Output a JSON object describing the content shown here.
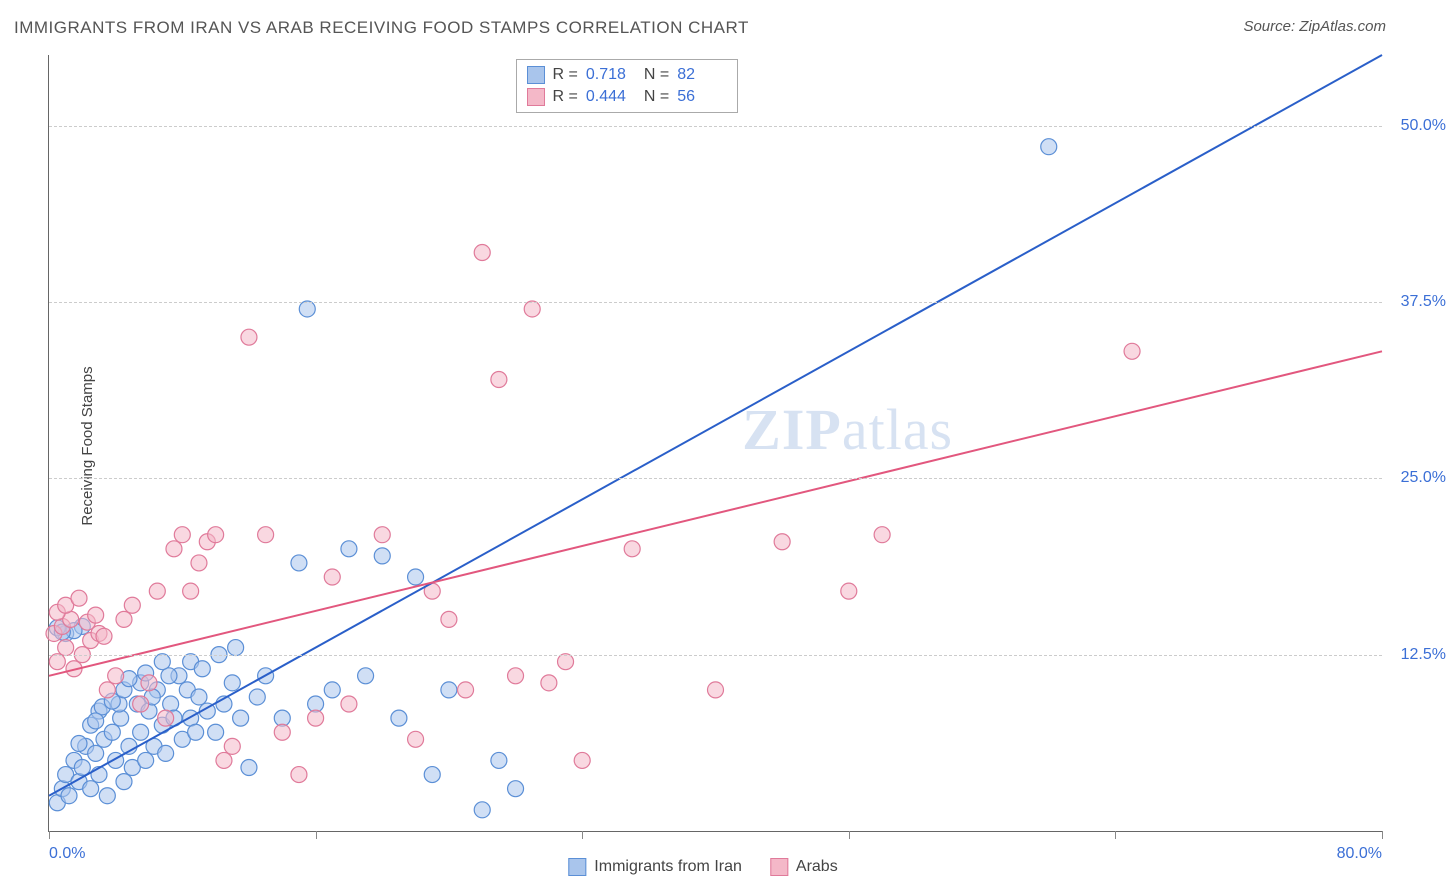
{
  "title": "IMMIGRANTS FROM IRAN VS ARAB RECEIVING FOOD STAMPS CORRELATION CHART",
  "source": "Source: ZipAtlas.com",
  "y_axis_label": "Receiving Food Stamps",
  "watermark": {
    "bold": "ZIP",
    "light": "atlas"
  },
  "chart": {
    "type": "scatter",
    "xlim": [
      0,
      80
    ],
    "ylim": [
      0,
      55
    ],
    "x_ticks": [
      0,
      16,
      32,
      48,
      64,
      80
    ],
    "x_tick_labels": {
      "0": "0.0%",
      "80": "80.0%"
    },
    "y_gridlines": [
      12.5,
      25.0,
      37.5,
      50.0
    ],
    "y_tick_labels": [
      "12.5%",
      "25.0%",
      "37.5%",
      "50.0%"
    ],
    "background_color": "#ffffff",
    "grid_color": "#cccccc",
    "axis_color": "#666666",
    "marker_radius": 8,
    "marker_stroke_width": 1.2,
    "line_width": 2
  },
  "series": [
    {
      "name": "Immigrants from Iran",
      "fill": "#a9c5ec",
      "fill_opacity": 0.55,
      "stroke": "#5b8fd6",
      "line_color": "#2a5fc9",
      "R": "0.718",
      "N": "82",
      "regression": {
        "x1": 0,
        "y1": 2.5,
        "x2": 80,
        "y2": 55
      },
      "points": [
        [
          0.5,
          2
        ],
        [
          0.8,
          3
        ],
        [
          1,
          4
        ],
        [
          1.2,
          2.5
        ],
        [
          1.5,
          5
        ],
        [
          1.8,
          3.5
        ],
        [
          2,
          4.5
        ],
        [
          2.2,
          6
        ],
        [
          2.5,
          3
        ],
        [
          2.8,
          5.5
        ],
        [
          3,
          4
        ],
        [
          3.3,
          6.5
        ],
        [
          3.5,
          2.5
        ],
        [
          3.8,
          7
        ],
        [
          4,
          5
        ],
        [
          4.3,
          8
        ],
        [
          4.5,
          3.5
        ],
        [
          4.8,
          6
        ],
        [
          5,
          4.5
        ],
        [
          5.3,
          9
        ],
        [
          5.5,
          7
        ],
        [
          5.8,
          5
        ],
        [
          6,
          8.5
        ],
        [
          6.3,
          6
        ],
        [
          6.5,
          10
        ],
        [
          6.8,
          7.5
        ],
        [
          7,
          5.5
        ],
        [
          7.3,
          9
        ],
        [
          7.5,
          8
        ],
        [
          7.8,
          11
        ],
        [
          8,
          6.5
        ],
        [
          8.3,
          10
        ],
        [
          8.5,
          8
        ],
        [
          8.8,
          7
        ],
        [
          9,
          9.5
        ],
        [
          9.5,
          8.5
        ],
        [
          10,
          7
        ],
        [
          10.5,
          9
        ],
        [
          11,
          10.5
        ],
        [
          11.5,
          8
        ],
        [
          12,
          4.5
        ],
        [
          12.5,
          9.5
        ],
        [
          13,
          11
        ],
        [
          14,
          8
        ],
        [
          15,
          19
        ],
        [
          15.5,
          37
        ],
        [
          16,
          9
        ],
        [
          17,
          10
        ],
        [
          18,
          20
        ],
        [
          19,
          11
        ],
        [
          20,
          19.5
        ],
        [
          21,
          8
        ],
        [
          22,
          18
        ],
        [
          23,
          4
        ],
        [
          24,
          10
        ],
        [
          26,
          1.5
        ],
        [
          27,
          5
        ],
        [
          28,
          3
        ],
        [
          60,
          48.5
        ],
        [
          2,
          14.5
        ],
        [
          1,
          14
        ],
        [
          1.5,
          14.2
        ],
        [
          0.5,
          14.4
        ],
        [
          0.8,
          14.1
        ],
        [
          3,
          8.5
        ],
        [
          4.2,
          9
        ],
        [
          5.5,
          10.5
        ],
        [
          6.2,
          9.5
        ],
        [
          7.2,
          11
        ],
        [
          8.5,
          12
        ],
        [
          9.2,
          11.5
        ],
        [
          10.2,
          12.5
        ],
        [
          11.2,
          13
        ],
        [
          2.5,
          7.5
        ],
        [
          3.2,
          8.8
        ],
        [
          4.5,
          10
        ],
        [
          5.8,
          11.2
        ],
        [
          6.8,
          12
        ],
        [
          1.8,
          6.2
        ],
        [
          2.8,
          7.8
        ],
        [
          3.8,
          9.2
        ],
        [
          4.8,
          10.8
        ]
      ]
    },
    {
      "name": "Arabs",
      "fill": "#f4b8c8",
      "fill_opacity": 0.55,
      "stroke": "#e07a9a",
      "line_color": "#e2577e",
      "R": "0.444",
      "N": "56",
      "regression": {
        "x1": 0,
        "y1": 11,
        "x2": 80,
        "y2": 34
      },
      "points": [
        [
          0.5,
          12
        ],
        [
          1,
          13
        ],
        [
          1.5,
          11.5
        ],
        [
          2,
          12.5
        ],
        [
          2.5,
          13.5
        ],
        [
          3,
          14
        ],
        [
          3.5,
          10
        ],
        [
          4,
          11
        ],
        [
          4.5,
          15
        ],
        [
          5,
          16
        ],
        [
          5.5,
          9
        ],
        [
          6,
          10.5
        ],
        [
          6.5,
          17
        ],
        [
          7,
          8
        ],
        [
          7.5,
          20
        ],
        [
          8,
          21
        ],
        [
          8.5,
          17
        ],
        [
          9,
          19
        ],
        [
          9.5,
          20.5
        ],
        [
          10,
          21
        ],
        [
          10.5,
          5
        ],
        [
          11,
          6
        ],
        [
          12,
          35
        ],
        [
          13,
          21
        ],
        [
          14,
          7
        ],
        [
          15,
          4
        ],
        [
          16,
          8
        ],
        [
          17,
          18
        ],
        [
          18,
          9
        ],
        [
          20,
          21
        ],
        [
          22,
          6.5
        ],
        [
          23,
          17
        ],
        [
          24,
          15
        ],
        [
          25,
          10
        ],
        [
          26,
          41
        ],
        [
          27,
          32
        ],
        [
          28,
          11
        ],
        [
          29,
          37
        ],
        [
          30,
          10.5
        ],
        [
          31,
          12
        ],
        [
          32,
          5
        ],
        [
          35,
          20
        ],
        [
          40,
          10
        ],
        [
          44,
          20.5
        ],
        [
          48,
          17
        ],
        [
          50,
          21
        ],
        [
          65,
          34
        ],
        [
          0.3,
          14
        ],
        [
          0.8,
          14.5
        ],
        [
          1.3,
          15
        ],
        [
          0.5,
          15.5
        ],
        [
          1,
          16
        ],
        [
          1.8,
          16.5
        ],
        [
          2.3,
          14.8
        ],
        [
          2.8,
          15.3
        ],
        [
          3.3,
          13.8
        ]
      ]
    }
  ],
  "legend_top": {
    "R_label": "R =",
    "N_label": "N ="
  },
  "legend_bottom": [
    {
      "label": "Immigrants from Iran",
      "series": 0
    },
    {
      "label": "Arabs",
      "series": 1
    }
  ]
}
